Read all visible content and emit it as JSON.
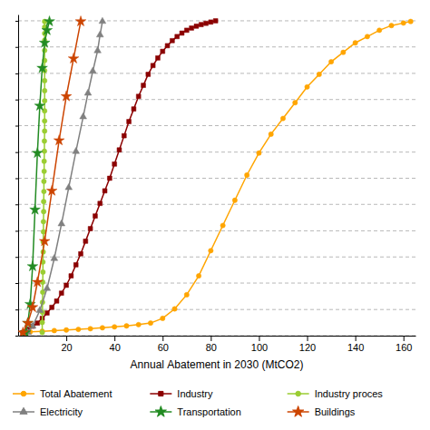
{
  "chart_data": {
    "type": "line",
    "xlabel": "Annual Abatement in 2030 (MtCO2)",
    "xlim": [
      0,
      165
    ],
    "xticks": [
      20,
      40,
      60,
      80,
      100,
      120,
      140,
      160
    ],
    "ylim": [
      0.0,
      1.02
    ],
    "yticks": [
      0.0,
      0.083,
      0.167,
      0.25,
      0.333,
      0.417,
      0.5,
      0.583,
      0.667,
      0.75,
      0.833,
      0.917,
      1.0
    ],
    "grid": true,
    "tick_labels": "x",
    "legend": "bottom",
    "series": [
      {
        "name": "Total Abatement",
        "color": "#FFA500",
        "marker": "circle",
        "x": [
          2,
          5,
          10,
          15,
          20,
          25,
          30,
          35,
          40,
          45,
          50,
          55,
          60,
          65,
          70,
          75,
          80,
          85,
          90,
          95,
          100,
          105,
          110,
          115,
          120,
          125,
          130,
          135,
          140,
          145,
          150,
          155,
          160,
          163
        ],
        "values": [
          0.01,
          0.012,
          0.014,
          0.016,
          0.018,
          0.02,
          0.022,
          0.025,
          0.028,
          0.031,
          0.035,
          0.04,
          0.055,
          0.085,
          0.13,
          0.19,
          0.27,
          0.35,
          0.43,
          0.51,
          0.58,
          0.64,
          0.69,
          0.74,
          0.79,
          0.83,
          0.87,
          0.9,
          0.93,
          0.95,
          0.97,
          0.985,
          0.993,
          0.998
        ]
      },
      {
        "name": "Industry",
        "color": "#8B0000",
        "marker": "square",
        "x": [
          2,
          4,
          6,
          8,
          10,
          12,
          14,
          16,
          18,
          20,
          22,
          24,
          26,
          28,
          30,
          32,
          34,
          36,
          38,
          40,
          42,
          44,
          46,
          48,
          50,
          52,
          54,
          56,
          58,
          60,
          62,
          64,
          66,
          68,
          70,
          72,
          74,
          76,
          78,
          80,
          82
        ],
        "values": [
          0.01,
          0.02,
          0.03,
          0.04,
          0.055,
          0.072,
          0.09,
          0.11,
          0.135,
          0.16,
          0.19,
          0.225,
          0.26,
          0.3,
          0.34,
          0.38,
          0.42,
          0.46,
          0.5,
          0.545,
          0.59,
          0.635,
          0.68,
          0.72,
          0.76,
          0.795,
          0.83,
          0.858,
          0.882,
          0.903,
          0.921,
          0.937,
          0.95,
          0.961,
          0.97,
          0.977,
          0.983,
          0.988,
          0.992,
          0.996,
          1.0
        ]
      },
      {
        "name": "Industry proces",
        "color": "#9ACD32",
        "marker": "circle",
        "x": [
          10.0,
          10.0,
          10.1,
          10.1,
          10.2,
          10.2,
          10.3,
          10.3,
          10.4,
          10.4,
          10.5,
          10.5,
          10.6,
          10.6,
          10.7,
          10.7,
          10.8,
          10.8,
          10.9,
          10.9,
          11.0,
          11.0,
          11.0,
          11.0,
          11.0,
          11.0,
          11.0,
          11.0,
          11.0,
          11.0,
          11.0,
          11.0,
          11.0
        ],
        "values": [
          0.01,
          0.042,
          0.074,
          0.106,
          0.138,
          0.17,
          0.202,
          0.234,
          0.266,
          0.298,
          0.33,
          0.362,
          0.394,
          0.426,
          0.458,
          0.49,
          0.522,
          0.554,
          0.586,
          0.618,
          0.65,
          0.682,
          0.714,
          0.746,
          0.778,
          0.81,
          0.842,
          0.874,
          0.906,
          0.938,
          0.96,
          0.98,
          0.998
        ]
      },
      {
        "name": "Electricity",
        "color": "#808080",
        "marker": "triangle",
        "x": [
          4,
          6,
          9,
          12,
          15,
          18,
          21,
          24,
          27,
          29,
          31,
          33,
          34,
          35
        ],
        "values": [
          0.01,
          0.03,
          0.08,
          0.15,
          0.245,
          0.355,
          0.47,
          0.585,
          0.695,
          0.77,
          0.84,
          0.905,
          0.955,
          0.998
        ]
      },
      {
        "name": "Transportation",
        "color": "#228B22",
        "marker": "star",
        "x": [
          3,
          4,
          5,
          6,
          7,
          8,
          9,
          10,
          11,
          12,
          13
        ],
        "values": [
          0.01,
          0.04,
          0.1,
          0.22,
          0.4,
          0.58,
          0.73,
          0.85,
          0.93,
          0.97,
          0.998
        ]
      },
      {
        "name": "Buildings",
        "color": "#CC4400",
        "marker": "star",
        "x": [
          2,
          4,
          6,
          8,
          11,
          14,
          17,
          20,
          23,
          26
        ],
        "values": [
          0.01,
          0.04,
          0.09,
          0.17,
          0.3,
          0.46,
          0.62,
          0.76,
          0.88,
          0.998
        ]
      }
    ]
  }
}
